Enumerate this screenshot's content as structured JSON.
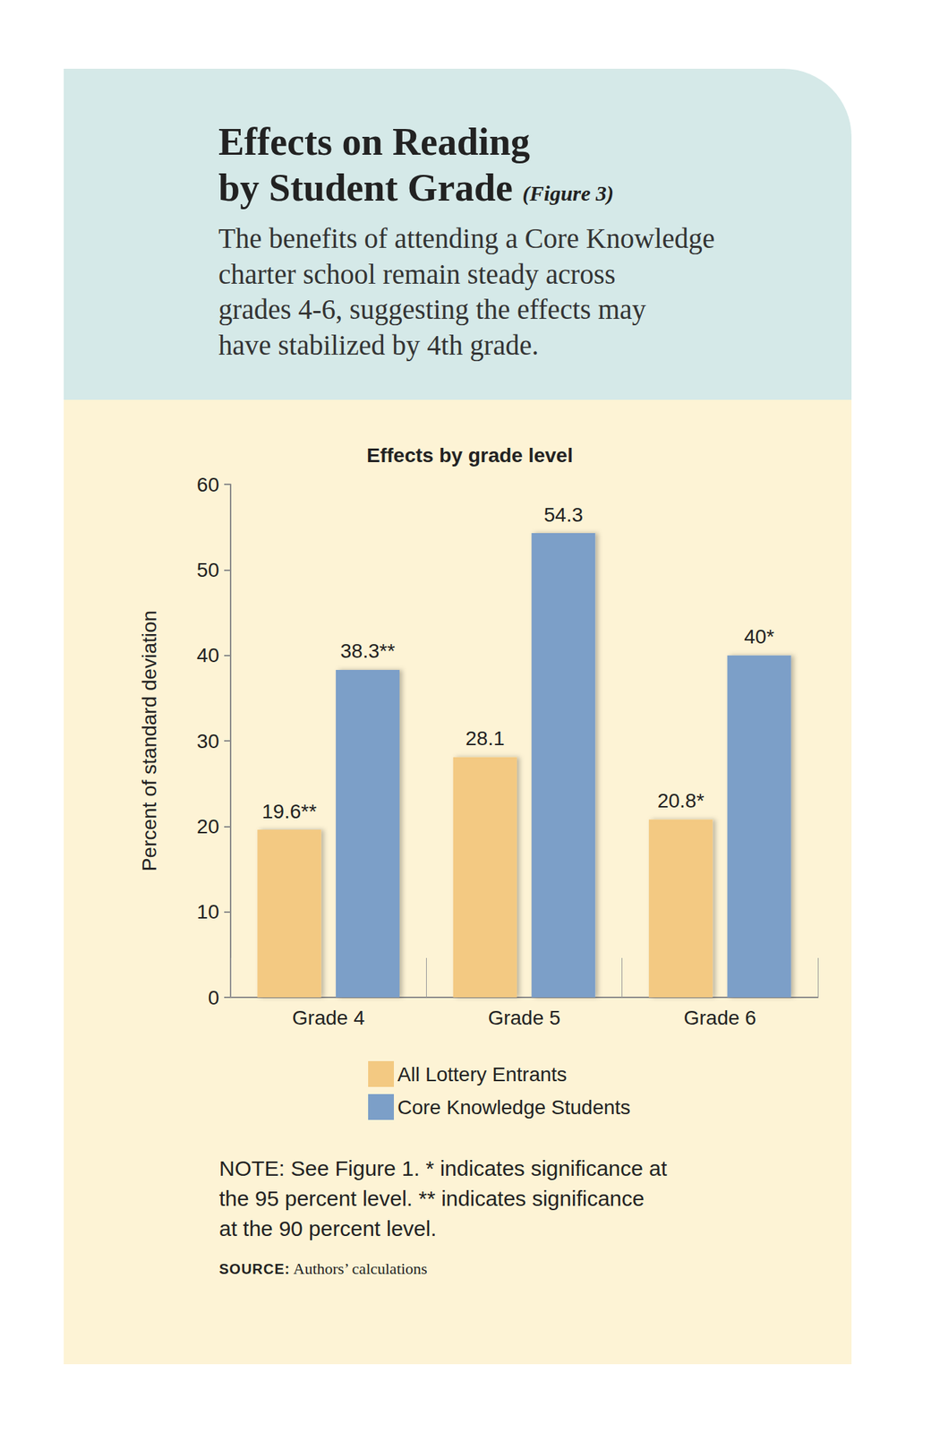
{
  "header": {
    "title": [
      "Effects on Reading",
      "by Student Grade"
    ],
    "figure": "(Figure 3)",
    "subtitle": [
      "The benefits of attending a Core Knowledge",
      "charter school remain steady across",
      "grades 4-6, suggesting the effects may",
      "have stabilized by 4th grade."
    ]
  },
  "chart_data": {
    "type": "bar",
    "title": "Effects by grade level",
    "y_label": "Percent of standard deviation",
    "categories": [
      "Grade 4",
      "Grade 5",
      "Grade 6"
    ],
    "series": [
      {
        "name": "All Lottery Entrants",
        "color": "#f3c982",
        "values": [
          19.6,
          28.1,
          20.8
        ],
        "value_labels": [
          "19.6**",
          "28.1",
          "20.8*"
        ]
      },
      {
        "name": "Core Knowledge Students",
        "color": "#7c9fc8",
        "values": [
          38.3,
          54.3,
          40
        ],
        "value_labels": [
          "38.3**",
          "54.3",
          "40*"
        ]
      }
    ],
    "ylim": [
      0,
      60
    ],
    "yticks": [
      0,
      10,
      20,
      30,
      40,
      50,
      60
    ],
    "grid": false,
    "data_labels": true,
    "legend": "bottom"
  },
  "note": [
    "NOTE: See Figure 1. * indicates significance at",
    "the 95 percent level. ** indicates significance",
    "at the 90 percent level."
  ],
  "source": {
    "label": "SOURCE:",
    "text": "Authors’ calculations"
  }
}
